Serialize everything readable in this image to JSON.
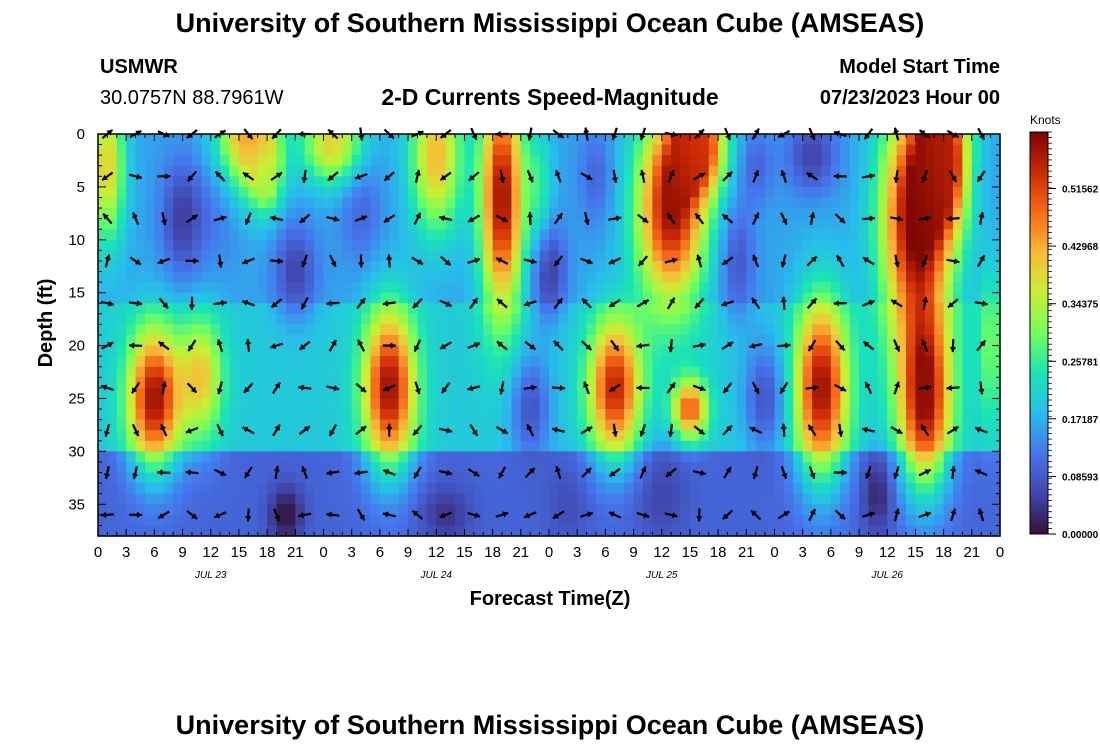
{
  "header": {
    "title": "University of Southern Mississippi Ocean Cube (AMSEAS)",
    "station": "USMWR",
    "coords": "30.0757N  88.7961W",
    "subtitle": "2-D Currents Speed-Magnitude",
    "model_label": "Model Start Time",
    "model_time": "07/23/2023 Hour 00"
  },
  "footer": {
    "title": "University of Southern Mississippi Ocean Cube (AMSEAS)"
  },
  "chart_data": {
    "type": "heatmap",
    "xlabel": "Forecast Time(Z)",
    "ylabel": "Depth (ft)",
    "xlim": [
      0,
      96
    ],
    "ylim": [
      0,
      38
    ],
    "x_ticks": [
      0,
      3,
      6,
      9,
      12,
      15,
      18,
      21,
      24,
      27,
      30,
      33,
      36,
      39,
      42,
      45,
      48,
      51,
      54,
      57,
      60,
      63,
      66,
      69,
      72,
      75,
      78,
      81,
      84,
      87,
      90,
      93,
      96
    ],
    "x_tick_labels": [
      "0",
      "3",
      "6",
      "9",
      "12",
      "15",
      "18",
      "21",
      "0",
      "3",
      "6",
      "9",
      "12",
      "15",
      "18",
      "21",
      "0",
      "3",
      "6",
      "9",
      "12",
      "15",
      "18",
      "21",
      "0",
      "3",
      "6",
      "9",
      "12",
      "15",
      "18",
      "21",
      "0"
    ],
    "date_labels": [
      {
        "hour": 12,
        "text": "JUL 23"
      },
      {
        "hour": 36,
        "text": "JUL 24"
      },
      {
        "hour": 60,
        "text": "JUL 25"
      },
      {
        "hour": 84,
        "text": "JUL 26"
      }
    ],
    "y_ticks": [
      0,
      5,
      10,
      15,
      20,
      25,
      30,
      35
    ],
    "y_tick_labels": [
      "0",
      "5",
      "10",
      "15",
      "20",
      "25",
      "30",
      "35"
    ],
    "colorbar": {
      "unit": "Knots",
      "min": 0.0,
      "max": 0.6,
      "ticks": [
        0.51562,
        0.42968,
        0.34375,
        0.25781,
        0.17187,
        0.08593,
        0.0
      ],
      "tick_labels": [
        "0.51562",
        "0.42968",
        "0.34375",
        "0.25781",
        "0.17187",
        "0.08593",
        "0.00000"
      ]
    },
    "features": [
      {
        "t": 1,
        "d": 3,
        "rt": 2,
        "rd": 8,
        "v": 0.4
      },
      {
        "t": 6,
        "d": 25,
        "rt": 3,
        "rd": 7,
        "v": 0.58
      },
      {
        "t": 11,
        "d": 23,
        "rt": 2.5,
        "rd": 6,
        "v": 0.4
      },
      {
        "t": 9,
        "d": 8,
        "rt": 2.5,
        "rd": 6,
        "v": 0.05
      },
      {
        "t": 16,
        "d": 0,
        "rt": 3.5,
        "rd": 6,
        "v": 0.46
      },
      {
        "t": 18,
        "d": 4,
        "rt": 1.8,
        "rd": 4,
        "v": 0.3
      },
      {
        "t": 13,
        "d": 7,
        "rt": 2.5,
        "rd": 6,
        "v": 0.12
      },
      {
        "t": 20,
        "d": 36,
        "rt": 2,
        "rd": 3,
        "v": 0.0
      },
      {
        "t": 21,
        "d": 13,
        "rt": 2.5,
        "rd": 5,
        "v": 0.06
      },
      {
        "t": 25,
        "d": 1,
        "rt": 3.5,
        "rd": 4,
        "v": 0.4
      },
      {
        "t": 31,
        "d": 24,
        "rt": 3,
        "rd": 8,
        "v": 0.58
      },
      {
        "t": 36,
        "d": 2,
        "rt": 3,
        "rd": 8,
        "v": 0.42
      },
      {
        "t": 28,
        "d": 7,
        "rt": 2.5,
        "rd": 6,
        "v": 0.1
      },
      {
        "t": 37,
        "d": 36,
        "rt": 3,
        "rd": 3,
        "v": 0.04
      },
      {
        "t": 43,
        "d": 6,
        "rt": 2.5,
        "rd": 12,
        "v": 0.58
      },
      {
        "t": 47,
        "d": 5,
        "rt": 1.5,
        "rd": 6,
        "v": 0.25
      },
      {
        "t": 46,
        "d": 26,
        "rt": 2.5,
        "rd": 6,
        "v": 0.08
      },
      {
        "t": 48,
        "d": 13,
        "rt": 2,
        "rd": 5,
        "v": 0.05
      },
      {
        "t": 50,
        "d": 35,
        "rt": 2.5,
        "rd": 4,
        "v": 0.07
      },
      {
        "t": 55,
        "d": 24,
        "rt": 3,
        "rd": 7,
        "v": 0.55
      },
      {
        "t": 53,
        "d": 4,
        "rt": 2,
        "rd": 5,
        "v": 0.1
      },
      {
        "t": 61,
        "d": 7,
        "rt": 4,
        "rd": 10,
        "v": 0.58
      },
      {
        "t": 64,
        "d": 1,
        "rt": 3,
        "rd": 5,
        "v": 0.52
      },
      {
        "t": 63,
        "d": 26,
        "rt": 2,
        "rd": 3,
        "v": 0.5
      },
      {
        "t": 60,
        "d": 34,
        "rt": 3,
        "rd": 5,
        "v": 0.06
      },
      {
        "t": 68,
        "d": 12,
        "rt": 2,
        "rd": 6,
        "v": 0.08
      },
      {
        "t": 70,
        "d": 3,
        "rt": 2,
        "rd": 4,
        "v": 0.1
      },
      {
        "t": 71,
        "d": 25,
        "rt": 2.5,
        "rd": 6,
        "v": 0.08
      },
      {
        "t": 77,
        "d": 24,
        "rt": 3,
        "rd": 9,
        "v": 0.58
      },
      {
        "t": 76,
        "d": 2,
        "rt": 3,
        "rd": 4,
        "v": 0.06
      },
      {
        "t": 83,
        "d": 34,
        "rt": 1.8,
        "rd": 4,
        "v": 0.02
      },
      {
        "t": 87,
        "d": 8,
        "rt": 4,
        "rd": 12,
        "v": 0.6
      },
      {
        "t": 88,
        "d": 25,
        "rt": 3,
        "rd": 9,
        "v": 0.58
      },
      {
        "t": 90,
        "d": 2,
        "rt": 3,
        "rd": 8,
        "v": 0.55
      },
      {
        "t": 95,
        "d": 20,
        "rt": 1.5,
        "rd": 8,
        "v": 0.3
      },
      {
        "t": 94,
        "d": 4,
        "rt": 1.8,
        "rd": 4,
        "v": 0.15
      }
    ],
    "background": [
      {
        "d_from": 0,
        "d_to": 16,
        "v": 0.16
      },
      {
        "d_from": 16,
        "d_to": 30,
        "v": 0.2
      },
      {
        "d_from": 30,
        "d_to": 38,
        "v": 0.1
      }
    ],
    "arrow_depths": [
      0,
      4,
      8,
      12,
      16,
      20,
      24,
      28,
      32,
      36
    ],
    "arrow_step_hours": 3,
    "arrow_seed": 17
  }
}
